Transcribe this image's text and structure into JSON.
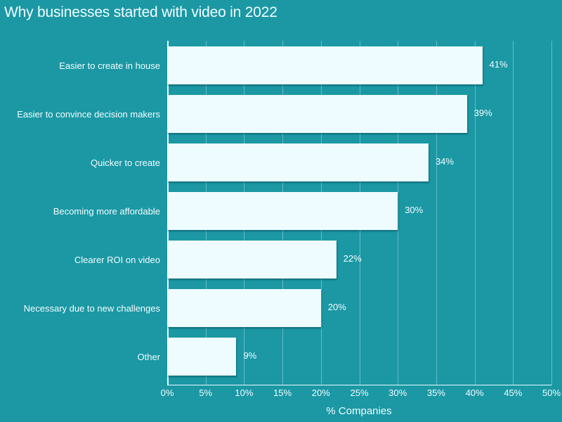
{
  "chart_data": {
    "type": "bar",
    "orientation": "horizontal",
    "title": "Why businesses started with video in 2022",
    "xlabel": "% Companies",
    "ylabel": "",
    "xlim": [
      0,
      50
    ],
    "grid": true,
    "legend": null,
    "categories": [
      "Easier to create in house",
      "Easier to convince decision makers",
      "Quicker to create",
      "Becoming more affordable",
      "Clearer ROI on video",
      "Necessary due to new challenges",
      "Other"
    ],
    "values": [
      41,
      39,
      34,
      30,
      22,
      20,
      9
    ],
    "value_labels": [
      "41%",
      "39%",
      "34%",
      "30%",
      "22%",
      "20%",
      "9%"
    ],
    "x_ticks": [
      "0%",
      "5%",
      "10%",
      "15%",
      "20%",
      "25%",
      "30%",
      "35%",
      "40%",
      "45%",
      "50%"
    ],
    "colors": {
      "background": "#1b98a4",
      "bar": "#eefbff",
      "text": "#f2fdff"
    }
  }
}
